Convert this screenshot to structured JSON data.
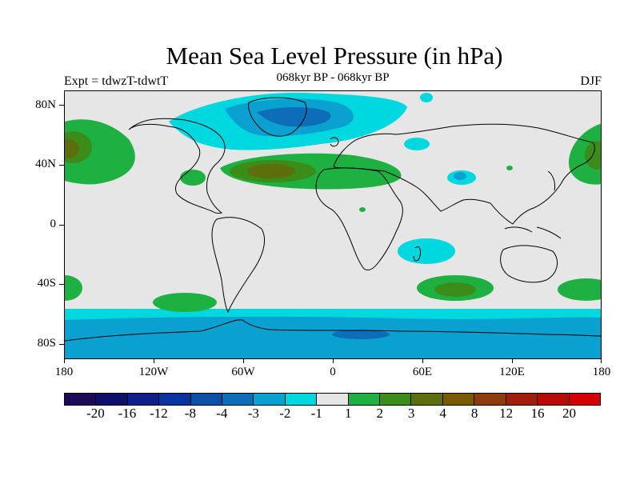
{
  "title": "Mean Sea Level Pressure (in hPa)",
  "subtitle": "068kyr BP - 068kyr BP",
  "left_label": "Expt = tdwzT-tdwtT",
  "right_label": "DJF",
  "lat_labels": [
    "80N",
    "40N",
    "0",
    "40S",
    "80S"
  ],
  "lon_labels": [
    "180",
    "120W",
    "60W",
    "0",
    "60E",
    "120E",
    "180"
  ],
  "colorbar": {
    "colors": [
      "#1c0a56",
      "#0e0f6a",
      "#0c1f8a",
      "#09339f",
      "#0b4fa9",
      "#0d6db8",
      "#0aa0cf",
      "#00d8e0",
      "#e6e6e6",
      "#1eb041",
      "#3c8c19",
      "#5d6e0c",
      "#7a5a04",
      "#8e3a0a",
      "#a21e0a",
      "#b80b05",
      "#d40000"
    ],
    "labels": [
      "-20",
      "-16",
      "-12",
      "-8",
      "-4",
      "-3",
      "-2",
      "-1",
      "1",
      "2",
      "3",
      "4",
      "8",
      "12",
      "16",
      "20"
    ]
  }
}
